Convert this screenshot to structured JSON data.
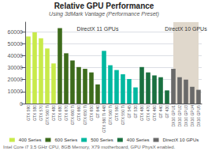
{
  "chart_data": {
    "type": "bar",
    "title": "Relative GPU Performance",
    "subtitle": "Using 3dMark Vantage (Performance Preset)",
    "footer": "Intel Core i7 3.5 GHz CPU, 8GB Memory, X79 motherboard, GPU PhysX enabled.",
    "categories": [
      "GTX 590",
      "GTX 580",
      "GTX 570",
      "GTX 560 Ti",
      "GTX 480",
      "GTX 680",
      "GTX 670",
      "GTX 660 Ti",
      "GTX 660",
      "GTX 650 Ti",
      "GTX 650",
      "GT 640",
      "GTX 560 Ti 448",
      "GTX 560 Ti",
      "GTX 560",
      "GTX 550 Ti",
      "GT 545",
      "GT 530",
      "GTX 480",
      "GTX 470",
      "GTX 460",
      "GT 440",
      "GT 430",
      "DX10 GPU1",
      "DX10 GPU2",
      "DX10 GPU3",
      "DX10 GPU4",
      "DX10 GPU5"
    ],
    "series": [
      {
        "name": "400 Series",
        "color": "#c8ea4a",
        "values": [
          56000,
          59500,
          54500,
          46000,
          33500,
          null,
          null,
          null,
          null,
          null,
          null,
          null,
          null,
          null,
          null,
          null,
          null,
          null,
          null,
          null,
          null,
          null,
          null,
          null,
          null,
          null,
          null,
          null
        ]
      },
      {
        "name": "600 Series",
        "color": "#3d6b1c",
        "values": [
          null,
          null,
          null,
          null,
          null,
          63000,
          42000,
          36000,
          30500,
          29000,
          26000,
          16000,
          null,
          null,
          null,
          null,
          null,
          null,
          null,
          null,
          null,
          null,
          null,
          null,
          null,
          null,
          null,
          null
        ]
      },
      {
        "name": "500 Series",
        "color": "#00b8a0",
        "values": [
          null,
          null,
          null,
          null,
          null,
          null,
          null,
          null,
          null,
          null,
          null,
          null,
          44000,
          32000,
          28000,
          24500,
          20500,
          13500,
          null,
          null,
          null,
          null,
          null,
          null,
          null,
          null,
          null,
          null
        ]
      },
      {
        "name": "400 Series",
        "color": "#1a7040",
        "values": [
          null,
          null,
          null,
          null,
          null,
          null,
          null,
          null,
          null,
          null,
          null,
          null,
          null,
          null,
          null,
          null,
          null,
          null,
          30500,
          26000,
          23500,
          22000,
          11000,
          null,
          null,
          null,
          null,
          null
        ]
      },
      {
        "name": "DirectX 10 GPUs",
        "color": "#696969",
        "values": [
          null,
          null,
          null,
          null,
          null,
          null,
          null,
          null,
          null,
          null,
          null,
          null,
          null,
          null,
          null,
          null,
          null,
          null,
          null,
          null,
          null,
          null,
          null,
          29000,
          22000,
          20000,
          14000,
          11500
        ]
      }
    ],
    "annotations": [
      {
        "text": "DirectX 11 GPUs",
        "from": "GTX 590",
        "to": "GT 430"
      },
      {
        "text": "DirectX 10 GPUs",
        "from": "DX10 GPU1",
        "to": "DX10 GPU5",
        "color": "#e0d8cc"
      }
    ],
    "ylim": [
      0,
      68000
    ],
    "yticks": [
      0,
      10000,
      20000,
      30000,
      40000,
      50000,
      60000
    ],
    "grid": true,
    "legend": "bottom"
  }
}
